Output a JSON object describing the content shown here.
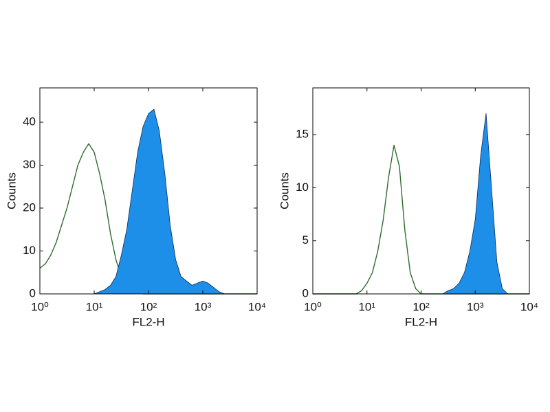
{
  "chart_data": [
    {
      "type": "area",
      "xscale": "log",
      "xlabel": "FL2-H",
      "ylabel": "Counts",
      "xlim": [
        1,
        10000
      ],
      "xticks": [
        {
          "value": 1,
          "label": "10⁰"
        },
        {
          "value": 10,
          "label": "10¹"
        },
        {
          "value": 100,
          "label": "10²"
        },
        {
          "value": 1000,
          "label": "10³"
        },
        {
          "value": 10000,
          "label": "10⁴"
        }
      ],
      "ylim": [
        0,
        48
      ],
      "yticks": [
        0,
        10,
        20,
        30,
        40
      ],
      "x": [
        1,
        1.26,
        1.58,
        2,
        2.51,
        3.16,
        3.98,
        5.01,
        6.31,
        7.94,
        10,
        12.6,
        15.8,
        20,
        25.1,
        31.6,
        39.8,
        50.1,
        63.1,
        79.4,
        100,
        126,
        158,
        200,
        251,
        316,
        398,
        501,
        631,
        794,
        1000,
        1259,
        1585,
        1995,
        2512,
        3162,
        3981,
        5012,
        6310,
        7943,
        10000
      ],
      "series": [
        {
          "color": "#2e6b2e",
          "filled": false,
          "values": [
            6,
            7,
            9,
            12,
            16,
            20,
            25,
            30,
            33,
            35,
            33,
            28,
            22,
            14,
            8,
            4,
            2,
            1,
            0.5,
            0,
            0,
            0,
            0,
            0,
            0,
            0,
            0,
            0,
            0,
            0,
            0,
            0,
            0,
            0,
            0,
            0,
            0,
            0,
            0,
            0,
            0
          ]
        },
        {
          "color": "#1e8fe8",
          "filled": true,
          "values": [
            0,
            0,
            0,
            0,
            0,
            0,
            0,
            0,
            0,
            0,
            0,
            0.5,
            1,
            2,
            4,
            9,
            15,
            24,
            33,
            39,
            42,
            43,
            38,
            28,
            16,
            8,
            4,
            3,
            2,
            2.5,
            3,
            2.5,
            1.5,
            0.5,
            0,
            0,
            0,
            0,
            0,
            0,
            0
          ]
        }
      ]
    },
    {
      "type": "area",
      "xscale": "log",
      "xlabel": "FL2-H",
      "ylabel": "Counts",
      "xlim": [
        1,
        10000
      ],
      "xticks": [
        {
          "value": 1,
          "label": "10⁰"
        },
        {
          "value": 10,
          "label": "10¹"
        },
        {
          "value": 100,
          "label": "10²"
        },
        {
          "value": 1000,
          "label": "10³"
        },
        {
          "value": 10000,
          "label": "10⁴"
        }
      ],
      "ylim": [
        0,
        19.4
      ],
      "yticks": [
        0,
        5,
        10,
        15
      ],
      "x": [
        1,
        1.26,
        1.58,
        2,
        2.51,
        3.16,
        3.98,
        5.01,
        6.31,
        7.94,
        10,
        12.6,
        15.8,
        20,
        25.1,
        31.6,
        39.8,
        50.1,
        63.1,
        79.4,
        100,
        126,
        158,
        200,
        251,
        316,
        398,
        501,
        631,
        794,
        1000,
        1259,
        1585,
        1995,
        2512,
        3162,
        3981,
        5012,
        6310,
        7943,
        10000
      ],
      "series": [
        {
          "color": "#2e6b2e",
          "filled": false,
          "values": [
            0,
            0,
            0,
            0,
            0,
            0,
            0,
            0,
            0,
            0.3,
            1,
            2,
            4,
            7,
            11,
            14,
            12,
            6,
            2,
            0.5,
            0,
            0,
            0,
            0,
            0,
            0,
            0,
            0,
            0,
            0,
            0,
            0,
            0,
            0,
            0,
            0,
            0,
            0,
            0,
            0,
            0
          ]
        },
        {
          "color": "#1e8fe8",
          "filled": true,
          "values": [
            0,
            0,
            0,
            0,
            0,
            0,
            0,
            0,
            0,
            0,
            0,
            0,
            0,
            0,
            0,
            0,
            0,
            0,
            0,
            0,
            0,
            0,
            0,
            0,
            0,
            0.3,
            0.5,
            1,
            2,
            4,
            7,
            13,
            17,
            10,
            3,
            0.5,
            0,
            0,
            0,
            0,
            0
          ]
        }
      ]
    }
  ]
}
